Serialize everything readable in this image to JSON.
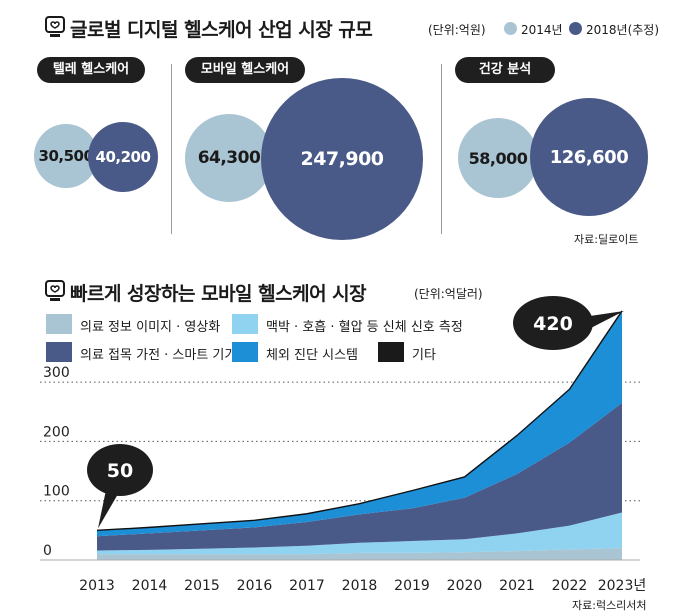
{
  "top": {
    "title": "글로벌 디지털 헬스케어 산업 시장 규모",
    "unit": "(단위:억원)",
    "legend": [
      {
        "label": "2014년",
        "color": "#a9c4d3"
      },
      {
        "label": "2018년(추정)",
        "color": "#4a5a88"
      }
    ],
    "groups": [
      {
        "name": "텔레 헬스케어",
        "v2014": "30,500",
        "v2018": "40,200"
      },
      {
        "name": "모바일 헬스케어",
        "v2014": "64,300",
        "v2018": "247,900"
      },
      {
        "name": "건강 분석",
        "v2014": "58,000",
        "v2018": "126,600"
      }
    ],
    "source": "자료:딜로이트"
  },
  "bottom": {
    "title": "빠르게 성장하는 모바일 헬스케어 시장",
    "unit": "(단위:억달러)",
    "source": "자료:럭스리서처"
  },
  "chart_data": {
    "type": "area",
    "stacked": true,
    "x": [
      "2013",
      "2014",
      "2015",
      "2016",
      "2017",
      "2018",
      "2019",
      "2020",
      "2021",
      "2022",
      "2023년"
    ],
    "ylim": [
      0,
      420
    ],
    "yticks": [
      "300",
      "200",
      "100",
      "0"
    ],
    "series": [
      {
        "name": "의료 정보 이미지 · 영상화",
        "color": "#a9c4d3",
        "values": [
          10,
          10,
          10,
          10,
          10,
          12,
          12,
          13,
          15,
          18,
          20
        ]
      },
      {
        "name": "맥박 · 호흡 · 혈압 등 신체 신호 측정",
        "color": "#8fd3f0",
        "values": [
          6,
          7,
          9,
          11,
          14,
          17,
          20,
          22,
          30,
          40,
          60
        ]
      },
      {
        "name": "의료 접목 가전 · 스마트 기기",
        "color": "#4a5a88",
        "values": [
          24,
          28,
          31,
          34,
          40,
          48,
          55,
          70,
          100,
          140,
          185
        ]
      },
      {
        "name": "체외 진단 시스템",
        "color": "#1c8fd6",
        "values": [
          10,
          10,
          11,
          12,
          14,
          18,
          30,
          35,
          65,
          90,
          155
        ]
      },
      {
        "name": "기타",
        "color": "#1a1a1a",
        "values": [
          0,
          0,
          0,
          0,
          0,
          0,
          0,
          0,
          0,
          0,
          0
        ]
      }
    ],
    "annotations": [
      {
        "x": "2013",
        "label": "50"
      },
      {
        "x": "2023년",
        "label": "420"
      }
    ]
  }
}
